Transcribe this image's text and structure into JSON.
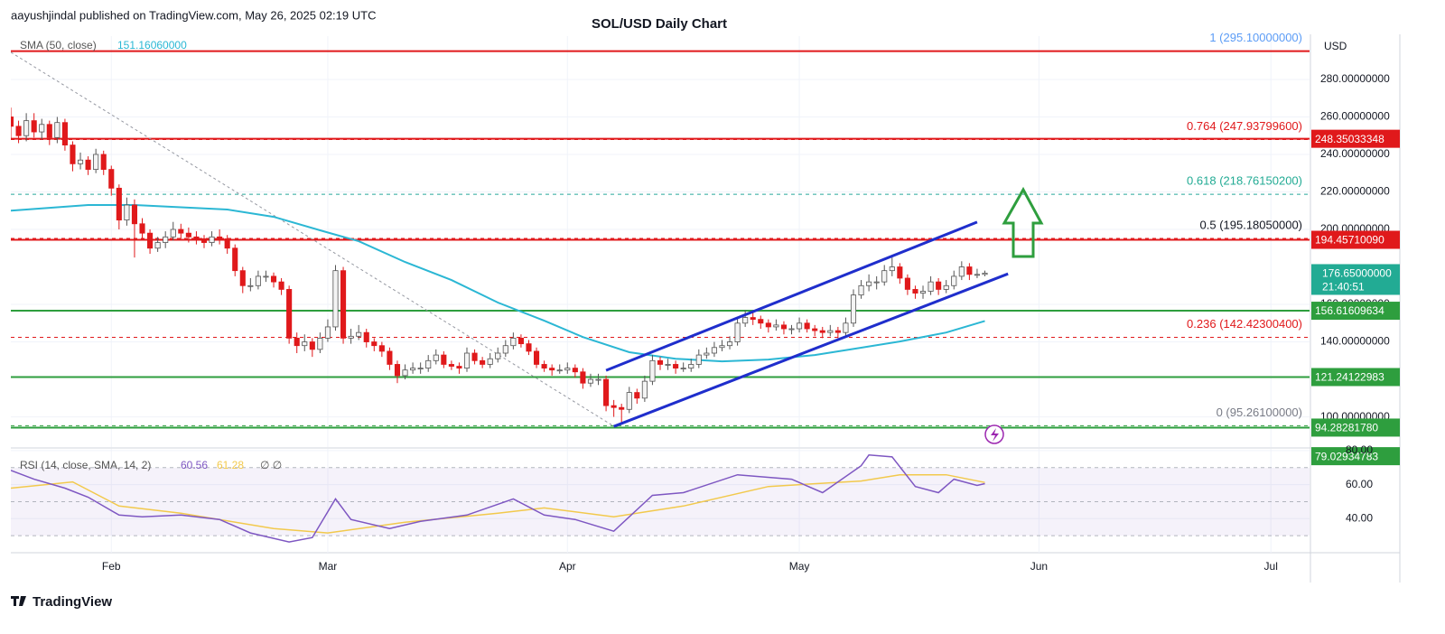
{
  "header": {
    "publisher": "aayushjindal published on TradingView.com, May 26, 2025 02:19 UTC",
    "brand": "TradingView"
  },
  "chart_data": {
    "type": "candlestick",
    "title": "SOL/USD Daily Chart",
    "currency": "USD",
    "up_color": "#f4f4f4",
    "down_color": "#e0191b",
    "wick_color": "#555555",
    "grid": true,
    "xlim": [
      0,
      168
    ],
    "xticks": [
      {
        "value": 13,
        "label": "Feb"
      },
      {
        "value": 41,
        "label": "Mar"
      },
      {
        "value": 72,
        "label": "Apr"
      },
      {
        "value": 102,
        "label": "May"
      },
      {
        "value": 133,
        "label": "Jun"
      },
      {
        "value": 163,
        "label": "Jul"
      }
    ],
    "ylim": [
      83.9,
      303.1
    ],
    "yticks": [
      {
        "value": 280,
        "label": "280.00000000"
      },
      {
        "value": 260,
        "label": "260.00000000"
      },
      {
        "value": 240,
        "label": "240.00000000"
      },
      {
        "value": 220,
        "label": "220.00000000"
      },
      {
        "value": 200,
        "label": "200.00000000"
      },
      {
        "value": 160,
        "label": "160.00000000"
      },
      {
        "value": 140,
        "label": "140.00000000"
      },
      {
        "value": 100,
        "label": "100.00000000"
      }
    ],
    "candles": [
      [
        260,
        265,
        248,
        255
      ],
      [
        255,
        258,
        246,
        250
      ],
      [
        250,
        262,
        247,
        258
      ],
      [
        258,
        262,
        249,
        252
      ],
      [
        252,
        259,
        248,
        256
      ],
      [
        256,
        258,
        245,
        249
      ],
      [
        249,
        260,
        246,
        257
      ],
      [
        257,
        259,
        242,
        245
      ],
      [
        245,
        247,
        231,
        235
      ],
      [
        235,
        241,
        232,
        237
      ],
      [
        237,
        239,
        229,
        232
      ],
      [
        232,
        243,
        230,
        240
      ],
      [
        240,
        242,
        229,
        232
      ],
      [
        232,
        234,
        218,
        222
      ],
      [
        222,
        224,
        200,
        205
      ],
      [
        205,
        217,
        202,
        213
      ],
      [
        213,
        216,
        185,
        203
      ],
      [
        203,
        206,
        194,
        198
      ],
      [
        198,
        200,
        187,
        190
      ],
      [
        190,
        196,
        188,
        193
      ],
      [
        193,
        199,
        190,
        196
      ],
      [
        196,
        204,
        194,
        200
      ],
      [
        200,
        203,
        195,
        198
      ],
      [
        198,
        201,
        193,
        196
      ],
      [
        196,
        199,
        192,
        195
      ],
      [
        195,
        197,
        190,
        193
      ],
      [
        193,
        199,
        191,
        196
      ],
      [
        196,
        200,
        192,
        195
      ],
      [
        195,
        197,
        187,
        190
      ],
      [
        190,
        192,
        175,
        178
      ],
      [
        178,
        180,
        166,
        170
      ],
      [
        170,
        174,
        167,
        170
      ],
      [
        170,
        178,
        168,
        175
      ],
      [
        175,
        178,
        172,
        175
      ],
      [
        175,
        177,
        169,
        172
      ],
      [
        172,
        174,
        165,
        168
      ],
      [
        168,
        170,
        139,
        142
      ],
      [
        142,
        145,
        134,
        138
      ],
      [
        138,
        144,
        135,
        140
      ],
      [
        140,
        142,
        132,
        136
      ],
      [
        136,
        145,
        134,
        142
      ],
      [
        142,
        152,
        140,
        148
      ],
      [
        148,
        181,
        146,
        178
      ],
      [
        178,
        180,
        139,
        142
      ],
      [
        142,
        147,
        139,
        143
      ],
      [
        143,
        149,
        141,
        145
      ],
      [
        145,
        147,
        137,
        140
      ],
      [
        140,
        142,
        135,
        138
      ],
      [
        138,
        140,
        132,
        135
      ],
      [
        135,
        137,
        125,
        128
      ],
      [
        128,
        130,
        118,
        122
      ],
      [
        122,
        128,
        120,
        125
      ],
      [
        125,
        129,
        123,
        126
      ],
      [
        126,
        129,
        123,
        126
      ],
      [
        126,
        133,
        124,
        130
      ],
      [
        130,
        136,
        128,
        133
      ],
      [
        133,
        135,
        126,
        128
      ],
      [
        128,
        130,
        125,
        127
      ],
      [
        127,
        129,
        123,
        126
      ],
      [
        126,
        137,
        124,
        134
      ],
      [
        134,
        136,
        128,
        130
      ],
      [
        130,
        132,
        126,
        128
      ],
      [
        128,
        134,
        126,
        131
      ],
      [
        131,
        137,
        129,
        134
      ],
      [
        134,
        141,
        132,
        138
      ],
      [
        138,
        145,
        136,
        142
      ],
      [
        142,
        144,
        137,
        139
      ],
      [
        139,
        141,
        133,
        135
      ],
      [
        135,
        137,
        126,
        128
      ],
      [
        128,
        130,
        124,
        126
      ],
      [
        126,
        128,
        122,
        125
      ],
      [
        125,
        128,
        123,
        125
      ],
      [
        125,
        129,
        123,
        126
      ],
      [
        126,
        128,
        121,
        124
      ],
      [
        124,
        126,
        115,
        118
      ],
      [
        118,
        123,
        116,
        120
      ],
      [
        120,
        123,
        117,
        120
      ],
      [
        120,
        122,
        103,
        106
      ],
      [
        106,
        109,
        100,
        105
      ],
      [
        105,
        107,
        96,
        104
      ],
      [
        104,
        116,
        102,
        113
      ],
      [
        113,
        115,
        107,
        110
      ],
      [
        110,
        122,
        108,
        119
      ],
      [
        119,
        133,
        117,
        130
      ],
      [
        130,
        132,
        125,
        128
      ],
      [
        128,
        131,
        125,
        128
      ],
      [
        128,
        130,
        123,
        126
      ],
      [
        126,
        129,
        124,
        126
      ],
      [
        126,
        131,
        124,
        128
      ],
      [
        128,
        136,
        126,
        133
      ],
      [
        133,
        137,
        131,
        134
      ],
      [
        134,
        140,
        132,
        137
      ],
      [
        137,
        141,
        135,
        138
      ],
      [
        138,
        143,
        136,
        140
      ],
      [
        140,
        153,
        138,
        150
      ],
      [
        150,
        157,
        148,
        153
      ],
      [
        153,
        156,
        149,
        152
      ],
      [
        152,
        154,
        147,
        150
      ],
      [
        150,
        152,
        145,
        148
      ],
      [
        148,
        152,
        146,
        149
      ],
      [
        149,
        151,
        144,
        147
      ],
      [
        147,
        149,
        144,
        147
      ],
      [
        147,
        153,
        145,
        150
      ],
      [
        150,
        152,
        145,
        147
      ],
      [
        147,
        149,
        143,
        146
      ],
      [
        146,
        148,
        142,
        145
      ],
      [
        145,
        149,
        143,
        146
      ],
      [
        146,
        148,
        142,
        145
      ],
      [
        145,
        153,
        143,
        150
      ],
      [
        150,
        168,
        148,
        165
      ],
      [
        165,
        173,
        163,
        170
      ],
      [
        170,
        176,
        167,
        172
      ],
      [
        172,
        175,
        168,
        172
      ],
      [
        172,
        181,
        170,
        178
      ],
      [
        178,
        185,
        175,
        180
      ],
      [
        180,
        182,
        171,
        174
      ],
      [
        174,
        176,
        165,
        168
      ],
      [
        168,
        170,
        163,
        166
      ],
      [
        166,
        170,
        163,
        167
      ],
      [
        167,
        175,
        165,
        172
      ],
      [
        172,
        174,
        165,
        168
      ],
      [
        168,
        173,
        166,
        170
      ],
      [
        170,
        178,
        168,
        175
      ],
      [
        175,
        183,
        173,
        180
      ],
      [
        180,
        182,
        173,
        176
      ],
      [
        176,
        179,
        174,
        176
      ],
      [
        176,
        178,
        175,
        176.65
      ]
    ],
    "current_price": {
      "value": 176.65,
      "label": "176.65000000",
      "countdown": "21:40:51",
      "color": "#22ab94"
    },
    "sma": {
      "name": "SMA (50, close)",
      "color": "#2bb7d4",
      "current": {
        "value": 151.1606,
        "label": "151.16060000"
      },
      "x": [
        0,
        10,
        16,
        28,
        34,
        40,
        45,
        51,
        57,
        63,
        69,
        74,
        80,
        86,
        92,
        98,
        104,
        110,
        115,
        121,
        126
      ],
      "values": [
        210,
        213,
        213,
        210.6,
        206.7,
        199.5,
        193.7,
        182.6,
        173,
        161,
        151.3,
        142.6,
        134.5,
        131,
        129.6,
        130.6,
        133,
        136.9,
        140.2,
        145,
        151.16
      ]
    },
    "levels": [
      {
        "value": 248.35033348,
        "label": "248.35033348",
        "color": "#e0191b"
      },
      {
        "value": 194.4571009,
        "label": "194.45710090",
        "color": "#e0191b"
      },
      {
        "value": 156.61609634,
        "label": "156.61609634",
        "color": "#2e9e3e"
      },
      {
        "value": 121.24122983,
        "label": "121.24122983",
        "color": "#2e9e3e"
      },
      {
        "value": 94.2828178,
        "label": "94.28281780",
        "color": "#2e9e3e"
      },
      {
        "value": 79.02934783,
        "label": "79.02934783",
        "color": "#2e9e3e"
      }
    ],
    "fib_levels": [
      {
        "value": 295.1,
        "label": "1 (295.10000000)",
        "color": "#e0191b",
        "label_color": "#5b9cf6",
        "style": "solid"
      },
      {
        "value": 247.937996,
        "label": "0.764 (247.93799600)",
        "color": "#e0191b",
        "label_color": "#e0191b",
        "style": "dashed"
      },
      {
        "value": 218.761502,
        "label": "0.618 (218.76150200)",
        "color": "#26a69a",
        "label_color": "#22ab94",
        "style": "dashed"
      },
      {
        "value": 195.1805,
        "label": "0.5 (195.18050000)",
        "color": "#e0191b",
        "label_color": "#131722",
        "style": "dashed"
      },
      {
        "value": 142.423004,
        "label": "0.236 (142.42300400)",
        "color": "#e0191b",
        "label_color": "#e0191b",
        "style": "dashed"
      },
      {
        "value": 95.261,
        "label": "0 (95.26100000)",
        "color": "#2e9e3e",
        "label_color": "#787b86",
        "style": "dashed"
      }
    ],
    "channel": {
      "color": "#1f2ecc",
      "lines": [
        [
          77,
          124.8,
          125,
          203.9
        ],
        [
          78,
          94.9,
          129,
          176.3
        ]
      ]
    },
    "diagonal": {
      "color": "#9598a1",
      "line": [
        0,
        294.5,
        78,
        95
      ]
    },
    "rsi": {
      "title": "RSI (14, close, SMA, 14, 2)",
      "value": 60.56,
      "sma_value": 61.28,
      "extra": "∅ ∅",
      "color": "#7e57c2",
      "sma_color": "#f2c94c",
      "ylim": [
        20,
        81
      ],
      "yticks": [
        {
          "value": 80,
          "label": "80.00"
        },
        {
          "value": 60,
          "label": "60.00"
        },
        {
          "value": 40,
          "label": "40.00"
        }
      ],
      "levels": [
        70,
        50,
        30
      ],
      "x": [
        0,
        3,
        7,
        10,
        14,
        17,
        22,
        27,
        31,
        36,
        39,
        42,
        44,
        49,
        53,
        59,
        65,
        69,
        73,
        78,
        83,
        87,
        94,
        101,
        105,
        110,
        111,
        114,
        117,
        120,
        122,
        125,
        126
      ],
      "values": [
        68.4,
        63.2,
        57.9,
        52.6,
        42.1,
        41.1,
        42.1,
        39.5,
        31.6,
        26.3,
        28.9,
        51.6,
        39.5,
        34.2,
        38.4,
        42.1,
        51.6,
        42.1,
        39.5,
        32.6,
        53.7,
        55.3,
        65.8,
        63.2,
        55.3,
        71.1,
        77.4,
        76.3,
        58.9,
        55.3,
        63.2,
        59.5,
        60.56
      ],
      "sma_x": [
        0,
        8,
        14,
        22,
        34,
        41,
        51,
        63,
        69,
        78,
        87,
        98,
        110,
        115,
        121,
        126
      ],
      "sma_values": [
        57.9,
        61.6,
        47.4,
        43.2,
        34.2,
        31.6,
        37.9,
        43.2,
        46.3,
        41.1,
        47.4,
        58.9,
        62.1,
        65.8,
        65.8,
        61.28
      ]
    }
  }
}
